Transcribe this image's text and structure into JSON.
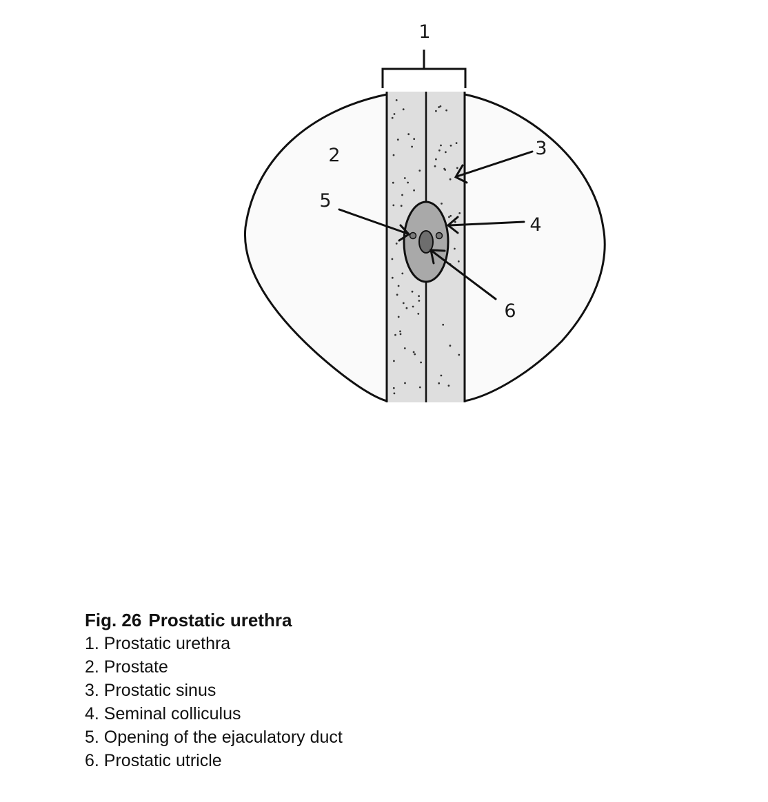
{
  "diagram": {
    "callouts": [
      {
        "id": "1",
        "label": "1"
      },
      {
        "id": "2",
        "label": "2"
      },
      {
        "id": "3",
        "label": "3"
      },
      {
        "id": "4",
        "label": "4"
      },
      {
        "id": "5",
        "label": "5"
      },
      {
        "id": "6",
        "label": "6"
      }
    ],
    "colors": {
      "outline": "#111111",
      "prostate_fill": "#fafafa",
      "urethra_fill": "#dedede",
      "colliculus_fill": "#a9a9a9",
      "utricle_fill": "#6e6e6e",
      "duct_opening_fill": "#7a7a7a"
    }
  },
  "caption": {
    "fig_label": "Fig. 26",
    "fig_title": "Prostatic urethra",
    "legend": [
      "1. Prostatic urethra",
      "2. Prostate",
      "3. Prostatic sinus",
      "4. Seminal colliculus",
      "5. Opening of the ejaculatory duct",
      "6. Prostatic utricle"
    ]
  }
}
